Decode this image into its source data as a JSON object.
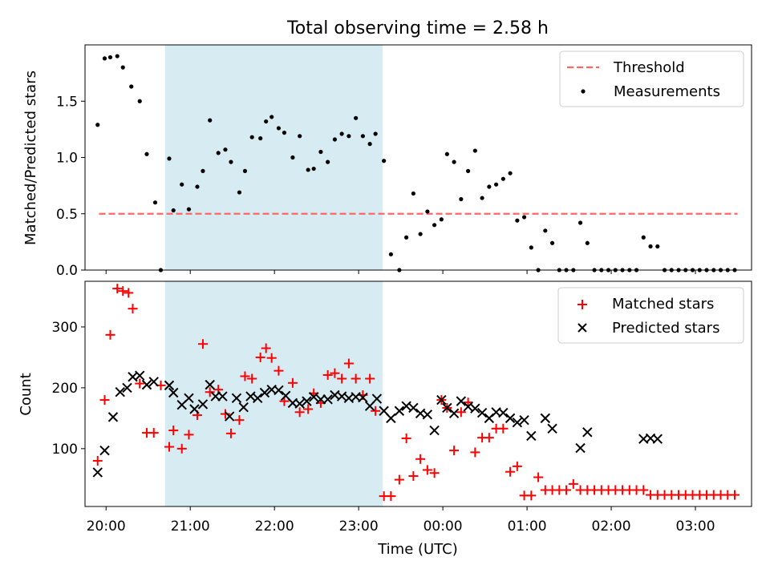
{
  "figure": {
    "title": "Total observing time = 2.58 h",
    "xlabel": "Time (UTC)",
    "shade_color": "#add8e6",
    "x_ticks": [
      "20:00",
      "21:00",
      "22:00",
      "23:00",
      "00:00",
      "01:00",
      "02:00",
      "03:00"
    ],
    "shaded_span": [
      "20:42",
      "23:17"
    ]
  },
  "chart_data": [
    {
      "type": "scatter",
      "ylabel": "Matched/Predicted stars",
      "ylim": [
        0,
        2.0
      ],
      "yticks": [
        "0.0",
        "0.5",
        "1.0",
        "1.5"
      ],
      "legend_position": "top-right",
      "threshold": {
        "name": "Threshold",
        "value": 0.5,
        "color": "#ff6666",
        "x_range": [
          "19:55",
          "23:30+4:00"
        ]
      },
      "series": [
        {
          "name": "Measurements",
          "color": "#000000",
          "x": [
            "19:54",
            "19:59",
            "20:03",
            "20:08",
            "20:12",
            "20:18",
            "20:24",
            "20:29",
            "20:35",
            "20:39",
            "20:45",
            "20:48",
            "20:54",
            "20:59",
            "21:05",
            "21:09",
            "21:14",
            "21:20",
            "21:25",
            "21:29",
            "21:35",
            "21:39",
            "21:44",
            "21:50",
            "21:54",
            "21:58",
            "22:03",
            "22:07",
            "22:13",
            "22:18",
            "22:24",
            "22:28",
            "22:33",
            "22:38",
            "22:43",
            "22:48",
            "22:53",
            "22:58",
            "23:03",
            "23:08",
            "23:12",
            "23:18",
            "23:23",
            "23:29",
            "23:34",
            "23:39",
            "23:44",
            "23:49",
            "23:54",
            "23:59",
            "00:03",
            "00:08",
            "00:13",
            "00:18",
            "00:23",
            "00:28",
            "00:33",
            "00:38",
            "00:43",
            "00:48",
            "00:53",
            "00:58",
            "01:03",
            "01:08",
            "01:13",
            "01:18",
            "01:23",
            "01:28",
            "01:33",
            "01:38",
            "01:43",
            "01:48",
            "01:53",
            "01:58",
            "02:03",
            "02:08",
            "02:13",
            "02:18",
            "02:23",
            "02:28",
            "02:33",
            "02:38",
            "02:43",
            "02:48",
            "02:53",
            "02:58",
            "03:03",
            "03:08",
            "03:13",
            "03:18",
            "03:23",
            "03:28"
          ],
          "values": [
            1.29,
            1.88,
            1.89,
            1.9,
            1.8,
            1.63,
            1.5,
            1.03,
            0.6,
            0.0,
            0.99,
            0.53,
            0.76,
            0.54,
            0.74,
            0.88,
            1.33,
            1.04,
            1.07,
            0.96,
            0.69,
            0.88,
            1.18,
            1.17,
            1.32,
            1.36,
            1.26,
            1.22,
            1.0,
            1.19,
            0.89,
            0.9,
            1.05,
            0.96,
            1.16,
            1.21,
            1.19,
            1.35,
            1.19,
            1.12,
            1.21,
            0.97,
            0.14,
            0.0,
            0.29,
            0.68,
            0.32,
            0.52,
            0.4,
            0.45,
            1.03,
            0.96,
            0.63,
            0.88,
            1.06,
            0.64,
            0.74,
            0.76,
            0.81,
            0.86,
            0.44,
            0.47,
            0.2,
            0.0,
            0.35,
            0.24,
            0.0,
            0.0,
            0.0,
            0.42,
            0.24,
            0.0,
            0.0,
            0.0,
            0.0,
            0.0,
            0.0,
            0.0,
            0.29,
            0.21,
            0.21,
            0.0,
            0.0,
            0.0,
            0.0,
            0.0,
            0.0,
            0.0,
            0.0,
            0.0,
            0.0,
            0.0
          ]
        }
      ]
    },
    {
      "type": "scatter",
      "ylabel": "Count",
      "ylim": [
        5,
        375
      ],
      "yticks": [
        "100",
        "200",
        "300"
      ],
      "legend_position": "top-right",
      "series": [
        {
          "name": "Matched stars",
          "color": "#ff0000",
          "marker": "plus",
          "x": [
            "19:54",
            "19:59",
            "20:03",
            "20:08",
            "20:12",
            "20:16",
            "20:19",
            "20:24",
            "20:29",
            "20:34",
            "20:39",
            "20:45",
            "20:48",
            "20:54",
            "20:59",
            "21:05",
            "21:09",
            "21:14",
            "21:20",
            "21:25",
            "21:29",
            "21:35",
            "21:39",
            "21:44",
            "21:50",
            "21:54",
            "21:58",
            "22:03",
            "22:07",
            "22:13",
            "22:18",
            "22:24",
            "22:28",
            "22:33",
            "22:38",
            "22:43",
            "22:48",
            "22:53",
            "22:58",
            "23:03",
            "23:08",
            "23:12",
            "23:18",
            "23:23",
            "23:29",
            "23:34",
            "23:39",
            "23:44",
            "23:49",
            "23:54",
            "23:59",
            "00:03",
            "00:08",
            "00:13",
            "00:18",
            "00:23",
            "00:28",
            "00:33",
            "00:38",
            "00:43",
            "00:48",
            "00:53",
            "00:58",
            "01:03",
            "01:08",
            "01:13",
            "01:18",
            "01:23",
            "01:28",
            "01:33",
            "01:38",
            "01:43",
            "01:48",
            "01:53",
            "01:58",
            "02:03",
            "02:08",
            "02:13",
            "02:18",
            "02:23",
            "02:28",
            "02:33",
            "02:38",
            "02:43",
            "02:48",
            "02:53",
            "02:58",
            "03:03",
            "03:08",
            "03:13",
            "03:18",
            "03:23",
            "03:28"
          ],
          "values": [
            80,
            180,
            287,
            363,
            359,
            356,
            330,
            207,
            126,
            126,
            204,
            103,
            130,
            100,
            123,
            155,
            272,
            193,
            197,
            157,
            125,
            147,
            219,
            215,
            250,
            265,
            249,
            228,
            178,
            208,
            160,
            165,
            191,
            175,
            221,
            224,
            215,
            240,
            215,
            188,
            215,
            162,
            22,
            22,
            49,
            117,
            55,
            83,
            65,
            60,
            180,
            167,
            97,
            160,
            176,
            94,
            118,
            118,
            133,
            133,
            62,
            71,
            23,
            23,
            53,
            32,
            32,
            32,
            32,
            42,
            32,
            32,
            32,
            32,
            32,
            32,
            32,
            32,
            32,
            32,
            24,
            24,
            24,
            24,
            24,
            24,
            24,
            24,
            24,
            24,
            24,
            24,
            24
          ]
        },
        {
          "name": "Predicted stars",
          "color": "#000000",
          "marker": "x",
          "x": [
            "19:54",
            "19:59",
            "20:05",
            "20:10",
            "20:15",
            "20:19",
            "20:24",
            "20:29",
            "20:34",
            "20:45",
            "20:48",
            "20:54",
            "20:59",
            "21:03",
            "21:09",
            "21:14",
            "21:18",
            "21:23",
            "21:28",
            "21:33",
            "21:38",
            "21:43",
            "21:48",
            "21:53",
            "21:58",
            "22:03",
            "22:08",
            "22:13",
            "22:18",
            "22:23",
            "22:28",
            "22:33",
            "22:38",
            "22:43",
            "22:48",
            "22:53",
            "22:58",
            "23:03",
            "23:08",
            "23:13",
            "23:18",
            "23:23",
            "23:29",
            "23:34",
            "23:39",
            "23:44",
            "23:49",
            "23:54",
            "23:59",
            "00:03",
            "00:08",
            "00:13",
            "00:18",
            "00:23",
            "00:28",
            "00:33",
            "00:38",
            "00:43",
            "00:48",
            "00:53",
            "00:58",
            "01:03",
            "01:13",
            "01:18",
            "01:38",
            "01:43",
            "02:23",
            "02:28",
            "02:33"
          ],
          "values": [
            61,
            97,
            152,
            193,
            200,
            218,
            220,
            205,
            210,
            204,
            192,
            172,
            183,
            165,
            173,
            205,
            186,
            186,
            153,
            183,
            168,
            186,
            183,
            192,
            197,
            196,
            187,
            175,
            174,
            178,
            185,
            181,
            181,
            188,
            186,
            183,
            185,
            184,
            170,
            182,
            162,
            150,
            162,
            170,
            167,
            158,
            156,
            130,
            180,
            167,
            158,
            178,
            169,
            166,
            159,
            150,
            160,
            159,
            150,
            143,
            147,
            121,
            150,
            133,
            101,
            127,
            116,
            117,
            116
          ]
        }
      ]
    }
  ]
}
